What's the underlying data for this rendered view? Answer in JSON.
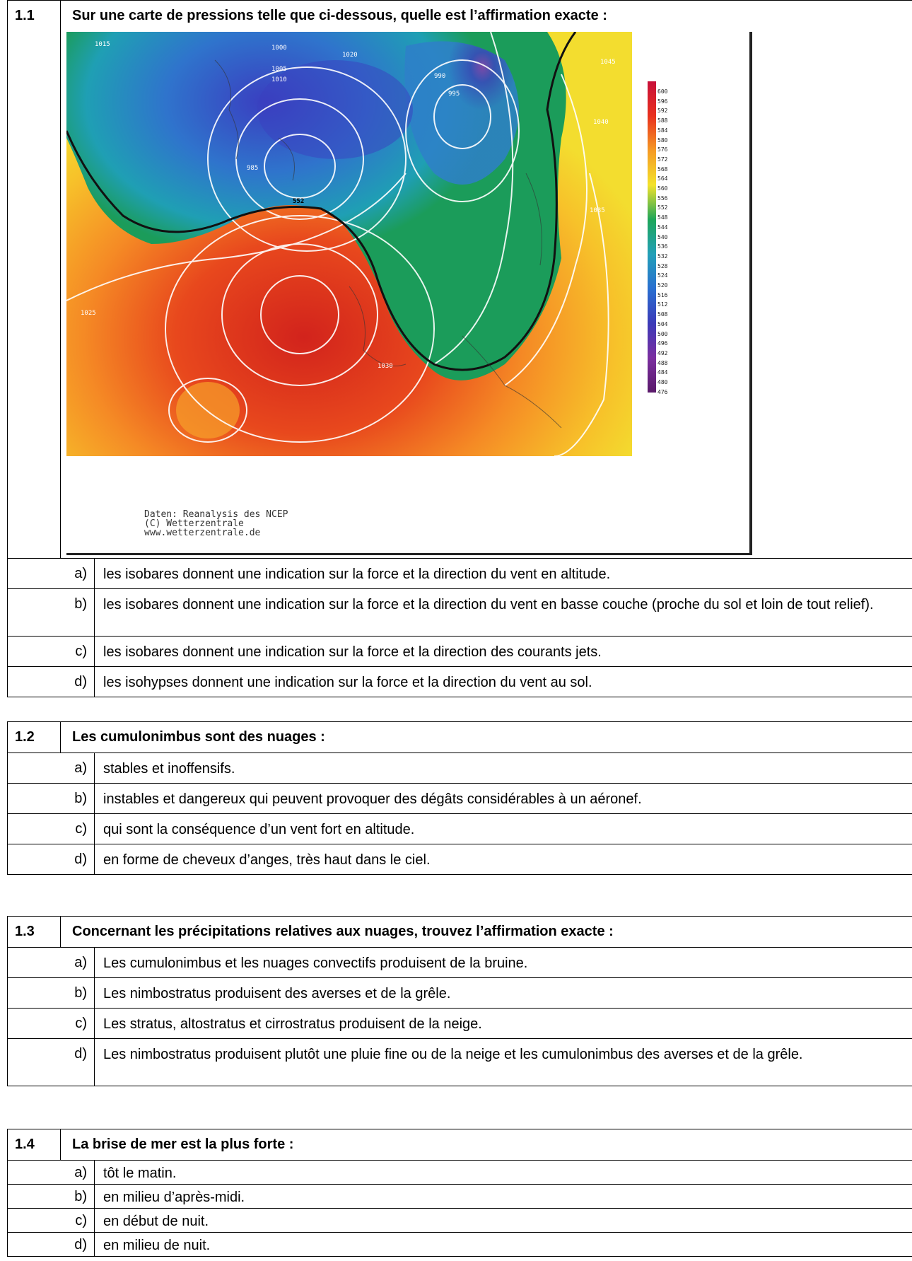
{
  "questions": [
    {
      "num": "1.1",
      "text": "Sur une carte de pressions telle que ci-dessous, quelle est l’affirmation exacte :",
      "answers": [
        {
          "letter": "a)",
          "text": "les isobares donnent une indication sur la force et la direction du vent en altitude."
        },
        {
          "letter": "b)",
          "text": "les isobares donnent une indication sur la force et la direction du vent en basse couche (proche du sol et loin de tout relief)."
        },
        {
          "letter": "c)",
          "text": "les isobares donnent une indication sur la force et la direction des courants jets."
        },
        {
          "letter": "d)",
          "text": "les isohypses donnent une indication sur la force et la direction du vent au sol."
        }
      ]
    },
    {
      "num": "1.2",
      "text": "Les cumulonimbus sont des nuages :",
      "answers": [
        {
          "letter": "a)",
          "text": "stables et inoffensifs."
        },
        {
          "letter": "b)",
          "text": "instables et dangereux qui peuvent provoquer des dégâts considérables à un aéronef."
        },
        {
          "letter": "c)",
          "text": "qui sont la conséquence d’un vent fort en altitude."
        },
        {
          "letter": "d)",
          "text": "en forme de cheveux d’anges, très haut dans le ciel."
        }
      ]
    },
    {
      "num": "1.3",
      "text": "Concernant les précipitations relatives aux nuages, trouvez l’affirmation exacte :",
      "answers": [
        {
          "letter": "a)",
          "text": "Les cumulonimbus et les nuages convectifs produisent de la bruine."
        },
        {
          "letter": "b)",
          "text": "Les nimbostratus produisent des averses et de la grêle."
        },
        {
          "letter": "c)",
          "text": "Les stratus, altostratus et cirrostratus produisent de la neige."
        },
        {
          "letter": "d)",
          "text": "Les nimbostratus produisent plutôt une pluie fine ou de la neige et les cumulonimbus des averses et de la grêle."
        }
      ]
    },
    {
      "num": "1.4",
      "text": "La brise de mer est la plus forte :",
      "answers": [
        {
          "letter": "a)",
          "text": "tôt le matin."
        },
        {
          "letter": "b)",
          "text": "en milieu d’après-midi."
        },
        {
          "letter": "c)",
          "text": "en début de nuit."
        },
        {
          "letter": "d)",
          "text": "en milieu de nuit."
        }
      ]
    }
  ],
  "map": {
    "credit_lines": [
      "Daten: Reanalysis des NCEP",
      "(C) Wetterzentrale",
      "www.wetterzentrale.de"
    ],
    "isobar_labels": [
      "1015",
      "1000",
      "1020",
      "1005",
      "1010",
      "990",
      "995",
      "1045",
      "1040",
      "985",
      "1035",
      "1025",
      "1030",
      "552"
    ],
    "scale_ticks": [
      "600",
      "596",
      "592",
      "588",
      "584",
      "580",
      "576",
      "572",
      "568",
      "564",
      "560",
      "556",
      "552",
      "548",
      "544",
      "540",
      "536",
      "532",
      "528",
      "524",
      "520",
      "516",
      "512",
      "508",
      "504",
      "500",
      "496",
      "492",
      "488",
      "484",
      "480",
      "476"
    ]
  }
}
